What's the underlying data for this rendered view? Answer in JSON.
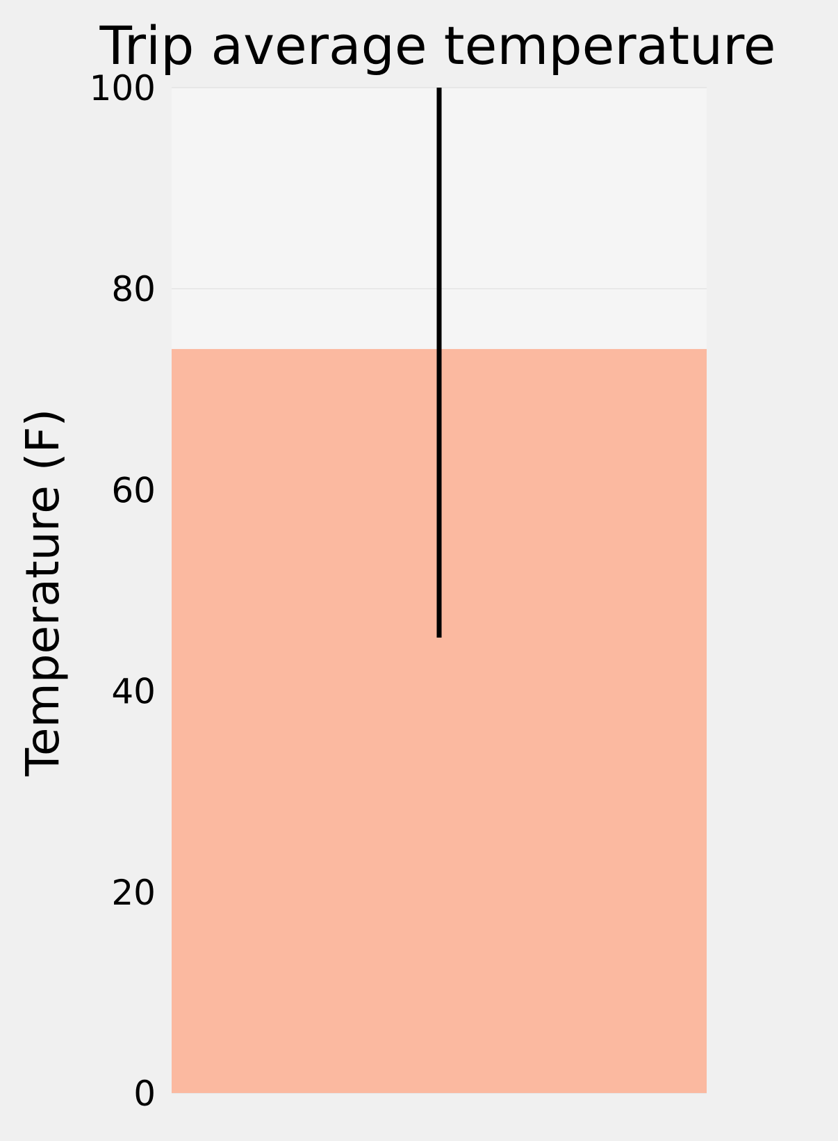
{
  "chart_data": {
    "type": "bar",
    "title": "Trip average temperature",
    "xlabel": "",
    "ylabel": "Temperature (F)",
    "categories": [
      ""
    ],
    "values": [
      74.0
    ],
    "error_bars": [
      {
        "low": 45.3,
        "high": 100.0
      }
    ],
    "ylim": [
      0,
      100
    ],
    "yticks": [
      0,
      20,
      40,
      60,
      80,
      100
    ],
    "grid": true,
    "bar_color": "#fbb9a0",
    "error_color": "#000000",
    "plot_background": "#f5f5f5",
    "figure_background": "#f0f0f0"
  }
}
